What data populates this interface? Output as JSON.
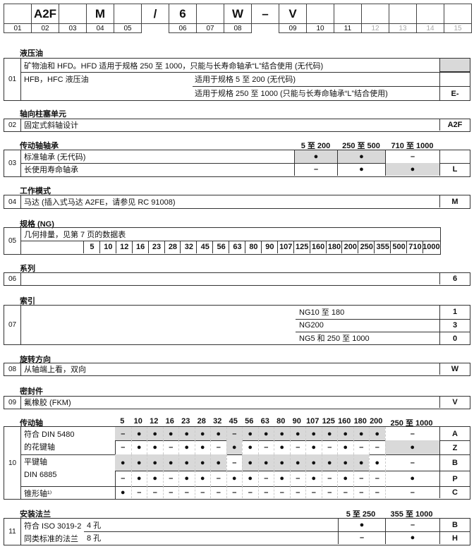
{
  "header": {
    "cells": [
      "",
      "A2F",
      "",
      "M",
      "",
      "/",
      "6",
      "",
      "W",
      "–",
      "V",
      "",
      "",
      "",
      "",
      "",
      ""
    ],
    "numbers": [
      "01",
      "02",
      "03",
      "04",
      "05",
      "",
      "06",
      "07",
      "08",
      "",
      "09",
      "10",
      "11",
      "12",
      "13",
      "14",
      "15"
    ],
    "numbers_greyed": [
      false,
      false,
      false,
      false,
      false,
      false,
      false,
      false,
      false,
      false,
      false,
      false,
      false,
      true,
      true,
      true,
      true
    ]
  },
  "s01": {
    "title": "液压油",
    "num": "01",
    "row1": "矿物油和 HFD。HFD 适用于规格 250 至 1000，只能与长寿命轴承“L”结合使用 (无代码)",
    "row2_left": "HFB，HFC 液压油",
    "row2_right": "适用于规格 5 至 200 (无代码)",
    "row3_right": "适用于规格 250 至 1000 (只能与长寿命轴承“L”结合使用)",
    "code3": "E-"
  },
  "s02": {
    "title": "轴向柱塞单元",
    "num": "02",
    "row1": "固定式斜轴设计",
    "code": "A2F"
  },
  "s03": {
    "title": "传动轴轴承",
    "num": "03",
    "columns": [
      "5 至 200",
      "250 至 500",
      "710 至 1000"
    ],
    "rows": [
      {
        "label": "标准轴承 (无代码)",
        "values": [
          "●",
          "●",
          "–"
        ],
        "shaded": [
          true,
          true,
          false
        ],
        "code": ""
      },
      {
        "label": "长使用寿命轴承",
        "values": [
          "–",
          "●",
          "●"
        ],
        "shaded": [
          false,
          false,
          true
        ],
        "code": "L"
      }
    ]
  },
  "s04": {
    "title": "工作模式",
    "num": "04",
    "row1": "马达 (插入式马达 A2FE，请参见 RC 91008)",
    "code": "M"
  },
  "s05": {
    "title": "规格 (NG)",
    "num": "05",
    "row1": "几何排量，见第 7 页的数据表",
    "sizes": [
      "5",
      "10",
      "12",
      "16",
      "23",
      "28",
      "32",
      "45",
      "56",
      "63",
      "80",
      "90",
      "107",
      "125",
      "160",
      "180",
      "200",
      "250",
      "355",
      "500",
      "710",
      "1000"
    ]
  },
  "s06": {
    "title": "系列",
    "num": "06",
    "code": "6"
  },
  "s07": {
    "title": "索引",
    "num": "07",
    "rows": [
      {
        "label": "NG10 至 180",
        "code": "1"
      },
      {
        "label": "NG200",
        "code": "3"
      },
      {
        "label": "NG5 和 250 至 1000",
        "code": "0"
      }
    ]
  },
  "s08": {
    "title": "旋转方向",
    "num": "08",
    "row1": "从轴端上看，双向",
    "code": "W"
  },
  "s09": {
    "title": "密封件",
    "num": "09",
    "row1": "氟橡胶 (FKM)",
    "code": "V"
  },
  "s10": {
    "title": "传动轴",
    "num": "10",
    "columns": [
      "5",
      "10",
      "12",
      "16",
      "23",
      "28",
      "32",
      "45",
      "56",
      "63",
      "80",
      "90",
      "107",
      "125",
      "160",
      "180",
      "200",
      "250 至 1000"
    ],
    "groups": [
      {
        "label_lines": [
          "符合 DIN 5480",
          "的花键轴"
        ]
      },
      {
        "label_lines": [
          "平键轴",
          "DIN 6885"
        ]
      },
      {
        "label_lines": [
          "锥形轴¹⁾"
        ]
      }
    ],
    "rows": [
      {
        "code": "A",
        "values": [
          "–",
          "●",
          "●",
          "●",
          "●",
          "●",
          "●",
          "–",
          "●",
          "●",
          "●",
          "●",
          "●",
          "●",
          "●",
          "●",
          "●",
          "–"
        ],
        "shaded": [
          1,
          1,
          1,
          1,
          1,
          1,
          1,
          1,
          1,
          1,
          1,
          1,
          1,
          1,
          1,
          1,
          1,
          0
        ]
      },
      {
        "code": "Z",
        "values": [
          "–",
          "●",
          "●",
          "–",
          "●",
          "●",
          "–",
          "●",
          "●",
          "–",
          "●",
          "–",
          "●",
          "–",
          "●",
          "–",
          "–",
          "●"
        ],
        "shaded": [
          0,
          0,
          0,
          0,
          0,
          0,
          0,
          1,
          0,
          0,
          0,
          0,
          0,
          0,
          0,
          0,
          0,
          1
        ]
      },
      {
        "code": "B",
        "values": [
          "●",
          "●",
          "●",
          "●",
          "●",
          "●",
          "●",
          "–",
          "●",
          "●",
          "●",
          "●",
          "●",
          "●",
          "●",
          "●",
          "●",
          "–"
        ],
        "shaded": [
          1,
          1,
          1,
          1,
          1,
          1,
          1,
          0,
          1,
          1,
          1,
          1,
          1,
          1,
          1,
          1,
          0,
          0
        ]
      },
      {
        "code": "P",
        "values": [
          "–",
          "●",
          "●",
          "–",
          "●",
          "●",
          "–",
          "●",
          "●",
          "–",
          "●",
          "–",
          "●",
          "–",
          "●",
          "–",
          "–",
          "●"
        ],
        "shaded": [
          0,
          0,
          0,
          0,
          0,
          0,
          0,
          0,
          0,
          0,
          0,
          0,
          0,
          0,
          0,
          0,
          0,
          0
        ]
      },
      {
        "code": "C",
        "values": [
          "●",
          "–",
          "–",
          "–",
          "–",
          "–",
          "–",
          "–",
          "–",
          "–",
          "–",
          "–",
          "–",
          "–",
          "–",
          "–",
          "–",
          "–"
        ],
        "shaded": [
          0,
          0,
          0,
          0,
          0,
          0,
          0,
          0,
          0,
          0,
          0,
          0,
          0,
          0,
          0,
          0,
          0,
          0
        ]
      }
    ]
  },
  "s11": {
    "title": "安装法兰",
    "num": "11",
    "columns": [
      "5 至 250",
      "355 至 1000"
    ],
    "label_lines": [
      "符合 ISO 3019-2",
      "同类标准的法兰"
    ],
    "rows": [
      {
        "sub": "4 孔",
        "values": [
          "●",
          "–"
        ],
        "code": "B"
      },
      {
        "sub": "8 孔",
        "values": [
          "–",
          "●"
        ],
        "code": "H"
      }
    ]
  }
}
